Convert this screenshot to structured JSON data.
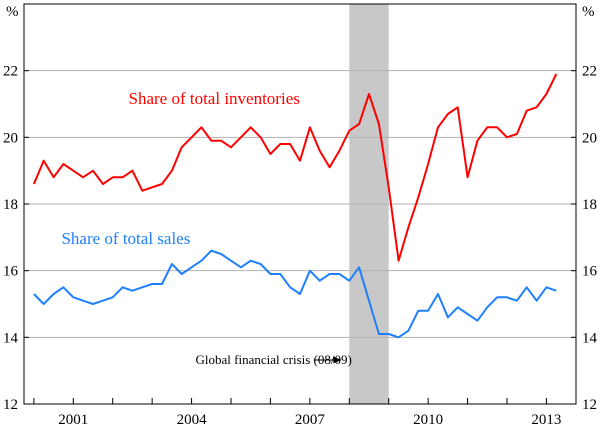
{
  "chart_data": {
    "type": "line",
    "title": "",
    "xlabel": "",
    "ylabel": "%",
    "right_ylabel": "%",
    "ylim": [
      12,
      24
    ],
    "yticks": [
      12,
      14,
      16,
      18,
      20,
      22
    ],
    "y2ticks": [
      12,
      14,
      16,
      18,
      20,
      22
    ],
    "xlim": [
      1999.75,
      2013.75
    ],
    "xticks": [
      {
        "label": "2001",
        "value": 2001
      },
      {
        "label": "2004",
        "value": 2004
      },
      {
        "label": "2007",
        "value": 2007
      },
      {
        "label": "2010",
        "value": 2010
      },
      {
        "label": "2013",
        "value": 2013
      }
    ],
    "grid": true,
    "shaded_region": {
      "from": 2008.0,
      "to": 2009.0,
      "color": "#c8c8c8"
    },
    "annotation": {
      "text": "Global financial crisis (08/09)",
      "text_x": 2004.1,
      "text_y": 13.2,
      "arrow_from_x": 2007.1,
      "arrow_to_x": 2007.8,
      "arrow_y": 13.2
    },
    "series": [
      {
        "name": "Share of total inventories",
        "color": "#ff0000",
        "label_x": 2002.4,
        "label_y": 21.0,
        "x": [
          2000.0,
          2000.25,
          2000.5,
          2000.75,
          2001.0,
          2001.25,
          2001.5,
          2001.75,
          2002.0,
          2002.25,
          2002.5,
          2002.75,
          2003.0,
          2003.25,
          2003.5,
          2003.75,
          2004.0,
          2004.25,
          2004.5,
          2004.75,
          2005.0,
          2005.25,
          2005.5,
          2005.75,
          2006.0,
          2006.25,
          2006.5,
          2006.75,
          2007.0,
          2007.25,
          2007.5,
          2007.75,
          2008.0,
          2008.25,
          2008.5,
          2008.75,
          2009.0,
          2009.25,
          2009.5,
          2009.75,
          2010.0,
          2010.25,
          2010.5,
          2010.75,
          2011.0,
          2011.25,
          2011.5,
          2011.75,
          2012.0,
          2012.25,
          2012.5,
          2012.75,
          2013.0,
          2013.25
        ],
        "values": [
          18.6,
          19.3,
          18.8,
          19.2,
          19.0,
          18.8,
          19.0,
          18.6,
          18.8,
          18.8,
          19.0,
          18.4,
          18.5,
          18.6,
          19.0,
          19.7,
          20.0,
          20.3,
          19.9,
          19.9,
          19.7,
          20.0,
          20.3,
          20.0,
          19.5,
          19.8,
          19.8,
          19.3,
          20.3,
          19.6,
          19.1,
          19.6,
          20.2,
          20.4,
          21.3,
          20.4,
          18.5,
          16.3,
          17.3,
          18.2,
          19.2,
          20.3,
          20.7,
          20.9,
          18.8,
          19.9,
          20.3,
          20.3,
          20.0,
          20.1,
          20.8,
          20.9,
          21.3,
          21.9
        ]
      },
      {
        "name": "Share of total sales",
        "color": "#1f7fff",
        "label_x": 2000.7,
        "label_y": 16.8,
        "x": [
          2000.0,
          2000.25,
          2000.5,
          2000.75,
          2001.0,
          2001.25,
          2001.5,
          2001.75,
          2002.0,
          2002.25,
          2002.5,
          2002.75,
          2003.0,
          2003.25,
          2003.5,
          2003.75,
          2004.0,
          2004.25,
          2004.5,
          2004.75,
          2005.0,
          2005.25,
          2005.5,
          2005.75,
          2006.0,
          2006.25,
          2006.5,
          2006.75,
          2007.0,
          2007.25,
          2007.5,
          2007.75,
          2008.0,
          2008.25,
          2008.5,
          2008.75,
          2009.0,
          2009.25,
          2009.5,
          2009.75,
          2010.0,
          2010.25,
          2010.5,
          2010.75,
          2011.0,
          2011.25,
          2011.5,
          2011.75,
          2012.0,
          2012.25,
          2012.5,
          2012.75,
          2013.0,
          2013.25
        ],
        "values": [
          15.3,
          15.0,
          15.3,
          15.5,
          15.2,
          15.1,
          15.0,
          15.1,
          15.2,
          15.5,
          15.4,
          15.5,
          15.6,
          15.6,
          16.2,
          15.9,
          16.1,
          16.3,
          16.6,
          16.5,
          16.3,
          16.1,
          16.3,
          16.2,
          15.9,
          15.9,
          15.5,
          15.3,
          16.0,
          15.7,
          15.9,
          15.9,
          15.7,
          16.1,
          15.1,
          14.1,
          14.1,
          14.0,
          14.2,
          14.8,
          14.8,
          15.3,
          14.6,
          14.9,
          14.7,
          14.5,
          14.9,
          15.2,
          15.2,
          15.1,
          15.5,
          15.1,
          15.5,
          15.4
        ]
      }
    ]
  }
}
